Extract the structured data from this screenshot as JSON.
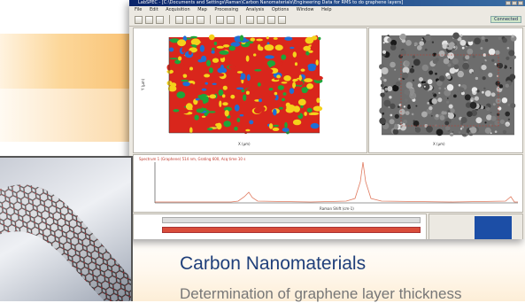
{
  "brand": {
    "heading_color": "#1f3f7a",
    "accent_orange": "#f9c274"
  },
  "window": {
    "title": "LabSPEC - [C:\\Documents and Settings\\Raman\\Carbon Nanomaterials\\Engineering Data for RMS to do graphene layers]",
    "menu": [
      "File",
      "Edit",
      "Acquisition",
      "Map",
      "Processing",
      "Analysis",
      "Options",
      "Window",
      "Help"
    ],
    "toolbar_icons": [
      "open-icon",
      "save-icon",
      "print-icon",
      "acquire-icon",
      "map-icon",
      "spectrum-icon",
      "zoom-icon",
      "cursor-icon",
      "peak-icon",
      "baseline-icon",
      "fit-icon",
      "export-icon"
    ],
    "status": "Connected"
  },
  "map_panel": {
    "colors": [
      "#d9261c",
      "#f5d21a",
      "#1ea63a",
      "#1e6fd6"
    ]
  },
  "image_panel": {
    "colors": [
      "#1a1a1a",
      "#e6e6e6"
    ]
  },
  "spectrum_panel": {
    "header": "Spectrum 1 (Graphene) 514 nm, Grating 600, Acq time 10 s",
    "line_color": "#e07a5f"
  },
  "inset": {
    "image": "carbon-nanotube-model"
  },
  "heading": "Carbon Nanomaterials",
  "subtext": "Determination of graphene layer thickness"
}
